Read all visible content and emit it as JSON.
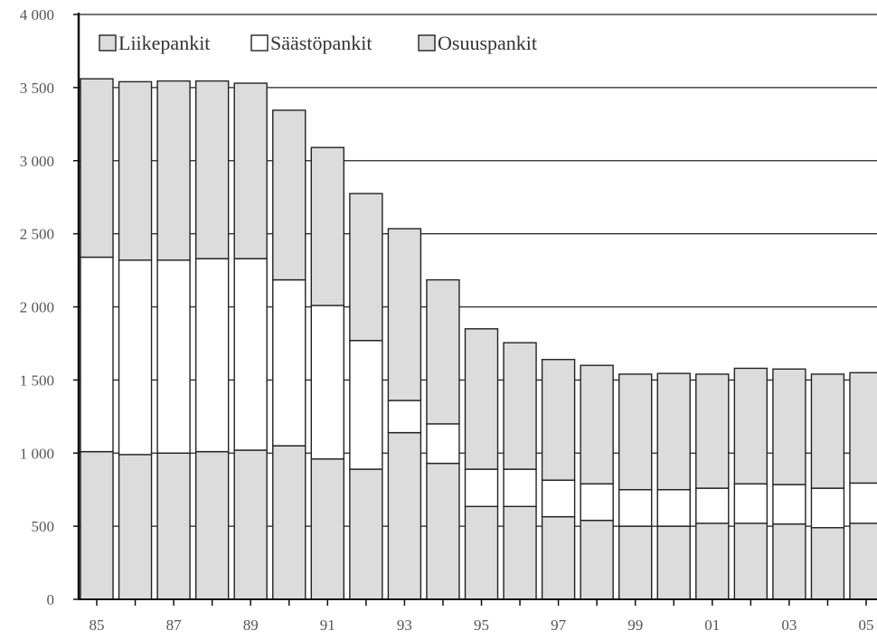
{
  "chart_data": {
    "type": "bar",
    "stacked": true,
    "grid": "horizontal",
    "legend_position": "top-left",
    "ylim": [
      0,
      4000
    ],
    "y_ticks": [
      0,
      500,
      1000,
      1500,
      2000,
      2500,
      3000,
      3500,
      4000
    ],
    "y_tick_labels": [
      "0",
      "500",
      "1 000",
      "1 500",
      "2 000",
      "2 500",
      "3 000",
      "3 500",
      "4 000"
    ],
    "categories": [
      "1985",
      "1986",
      "1987",
      "1988",
      "1989",
      "1990",
      "1991",
      "1992",
      "1993",
      "1994",
      "1995",
      "1996",
      "1997",
      "1998",
      "1999",
      "2000",
      "2001",
      "2002",
      "2003",
      "2004",
      "2005"
    ],
    "x_tick_labels": [
      "85",
      "",
      "87",
      "",
      "89",
      "",
      "91",
      "",
      "93",
      "",
      "95",
      "",
      "97",
      "",
      "99",
      "",
      "01",
      "",
      "03",
      "",
      "05"
    ],
    "series": [
      {
        "name": "Liikepankit",
        "color": "#dcdcdc",
        "values": [
          1010,
          990,
          1000,
          1010,
          1020,
          1050,
          960,
          890,
          1140,
          930,
          635,
          635,
          565,
          540,
          500,
          500,
          520,
          520,
          515,
          490,
          520
        ]
      },
      {
        "name": "Säästöpankit",
        "color": "#ffffff",
        "values": [
          1330,
          1330,
          1320,
          1320,
          1310,
          1135,
          1050,
          880,
          220,
          270,
          255,
          255,
          250,
          250,
          250,
          250,
          240,
          270,
          270,
          270,
          275
        ]
      },
      {
        "name": "Osuuspankit",
        "color": "#dcdcdc",
        "values": [
          1220,
          1220,
          1225,
          1215,
          1200,
          1160,
          1080,
          1005,
          1175,
          985,
          960,
          865,
          825,
          810,
          790,
          795,
          780,
          790,
          790,
          780,
          755
        ]
      }
    ],
    "title": "",
    "xlabel": "",
    "ylabel": ""
  }
}
